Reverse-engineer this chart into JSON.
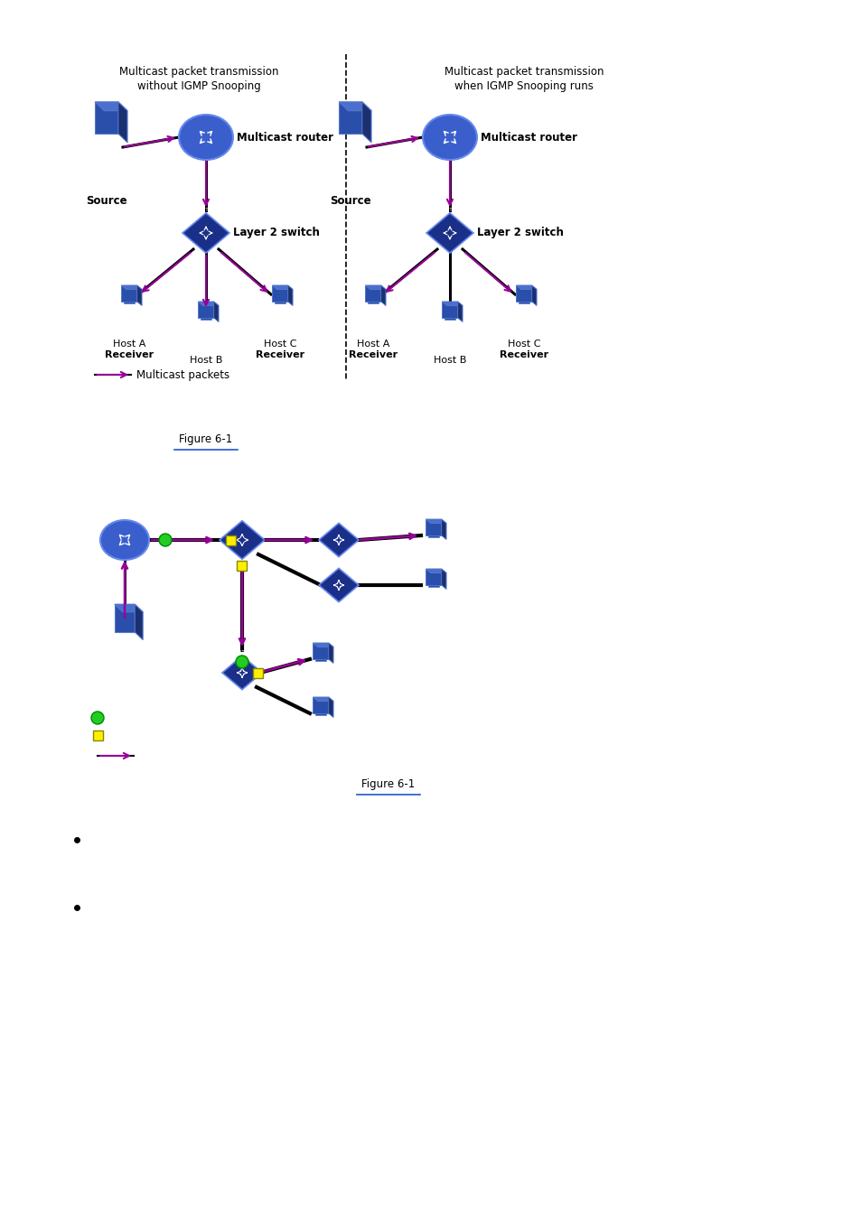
{
  "bg_color": "#ffffff",
  "fig_width": 9.54,
  "fig_height": 13.5,
  "dpi": 100,
  "left_title": [
    "Multicast packet transmission",
    "without IGMP Snooping"
  ],
  "right_title": [
    "Multicast packet transmission",
    "when IGMP Snooping runs"
  ],
  "arrow_color": "#990099",
  "node_dark": "#1a2f7a",
  "node_mid": "#2a4faa",
  "node_light": "#4a6fcc",
  "router_fill": "#3a5fcc",
  "switch_fill": "#1a3088",
  "host_fill": "#2a4faa",
  "green_port": "#22cc22",
  "yellow_port": "#ffee00"
}
